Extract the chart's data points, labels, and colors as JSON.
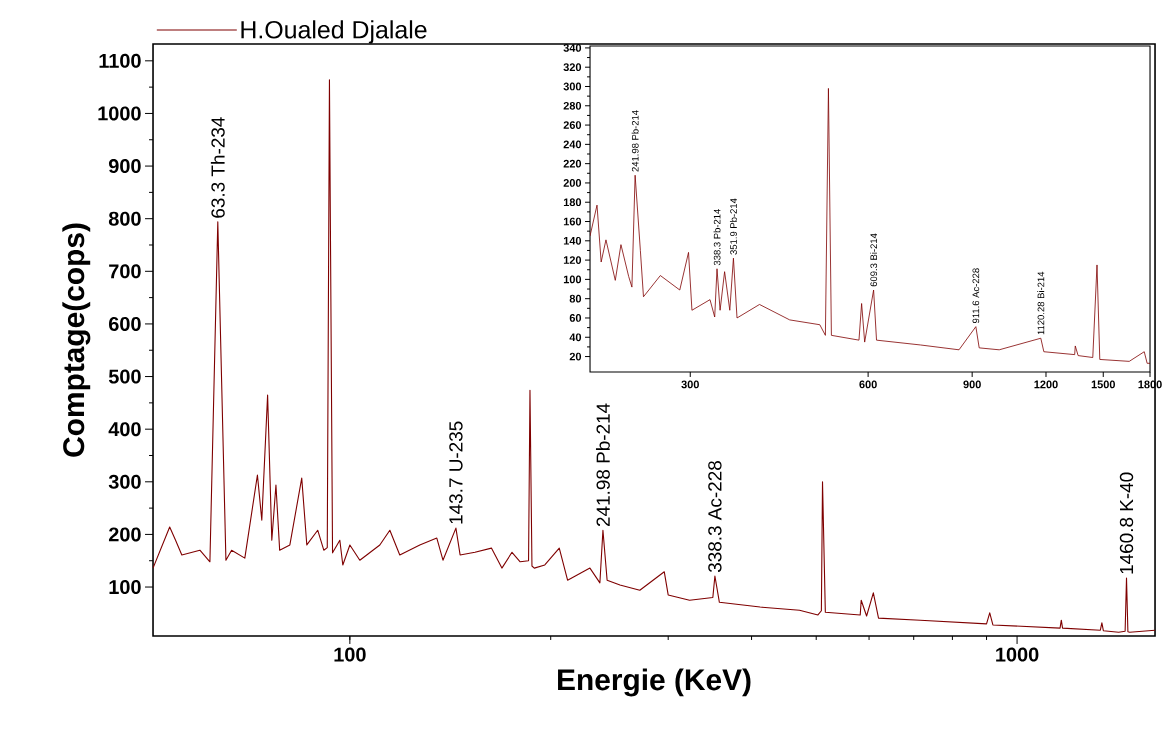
{
  "chart_data": [
    {
      "type": "line",
      "xlabel": "Energie (KeV)",
      "ylabel": "Comptage(cops)",
      "log": "x",
      "legend": "top left",
      "xlim": [
        50.7,
        1610
      ],
      "xticks": [
        100,
        1000
      ],
      "ylim": [
        7,
        1132
      ],
      "yticks": [
        100,
        200,
        300,
        400,
        500,
        600,
        700,
        800,
        900,
        1000,
        1100
      ],
      "series": [
        {
          "name": "H.Oualed Djalale",
          "color": "#7f0000",
          "x": [
            50.7,
            53.7,
            54.8,
            56,
            59.6,
            61.7,
            63.4,
            65.2,
            66.5,
            69.6,
            72.7,
            73.8,
            75.3,
            76.4,
            77.5,
            78.5,
            81.3,
            84.7,
            86.2,
            89.5,
            91.4,
            92.5,
            93.2,
            94.2,
            96.6,
            97.6,
            100,
            103.5,
            110.9,
            114.8,
            118.8,
            127.3,
            135,
            137.9,
            144.2,
            146.3,
            154,
            163,
            169,
            175,
            180,
            185.3,
            186.2,
            187.5,
            189,
            196,
            206,
            212,
            229,
            237,
            239.5,
            243,
            254,
            272,
            296,
            300,
            323,
            350,
            352.5,
            358,
            412,
            472,
            503,
            509,
            511,
            516,
            582,
            584,
            595,
            609,
            620,
            716,
            900,
            910,
            920,
            1160,
            1165,
            1170,
            1333,
            1340,
            1347,
            1420,
            1452,
            1459,
            1466,
            1475,
            1610
          ],
          "values": [
            136,
            214,
            189,
            161,
            170,
            148,
            794,
            151,
            170,
            155,
            313,
            227,
            465,
            189,
            294,
            170,
            180,
            307,
            180,
            208,
            170,
            175,
            1064,
            165,
            189,
            142,
            180,
            151,
            180,
            208,
            161,
            180,
            193,
            151,
            212,
            161,
            166,
            174,
            136,
            166,
            148,
            150,
            474,
            140,
            136,
            142,
            174,
            113,
            136,
            108,
            208,
            113,
            104,
            94,
            129,
            85,
            75,
            80,
            121,
            71,
            62,
            56,
            47,
            55,
            300,
            52,
            47,
            75,
            45,
            89,
            41,
            37,
            30,
            51,
            28,
            22,
            37,
            22,
            18,
            32,
            17,
            14,
            16,
            117,
            15,
            14,
            18
          ]
        }
      ],
      "annotations": [
        {
          "text": "63.3 Th-234",
          "x": 63.4,
          "y": 794
        },
        {
          "text": "143.7 U-235",
          "x": 144.2,
          "y": 212
        },
        {
          "text": "241.98 Pb-214",
          "x": 239.5,
          "y": 208
        },
        {
          "text": "338.3 Ac-228",
          "x": 352.5,
          "y": 121
        },
        {
          "text": "1460.8 K-40",
          "x": 1459,
          "y": 117
        }
      ]
    },
    {
      "type": "line",
      "log": "x",
      "xlim": [
        203,
        1800
      ],
      "xticks": [
        300,
        600,
        900,
        1200,
        1500,
        1800
      ],
      "ylim": [
        4,
        342
      ],
      "yticks": [
        20,
        40,
        60,
        80,
        100,
        120,
        140,
        160,
        180,
        200,
        220,
        240,
        260,
        280,
        300,
        320,
        340
      ],
      "series": [
        {
          "color": "#7f0000",
          "x": [
            203,
            208.6,
            212,
            216,
            224,
            229,
            236,
            239,
            242,
            247,
            250,
            267,
            288,
            298,
            302,
            324,
            330,
            333,
            337,
            343,
            350,
            355,
            360,
            393,
            442,
            497,
            508,
            514,
            520,
            579,
            585,
            592,
            613,
            620,
            736,
            855,
            913,
            925,
            1000,
            1176,
            1190,
            1342,
            1345,
            1360,
            1440,
            1464,
            1480,
            1660,
            1760,
            1780,
            1800
          ],
          "values": [
            145,
            177,
            118,
            141,
            99,
            136,
            103,
            92,
            208,
            130,
            82,
            104,
            89,
            128,
            68,
            79,
            61,
            111,
            68,
            108,
            68,
            122,
            60,
            74,
            58,
            53,
            42,
            298,
            42,
            37,
            75,
            35,
            89,
            37,
            32,
            27,
            51,
            29,
            27,
            39,
            25,
            22,
            31,
            21,
            19,
            115,
            17,
            15,
            25,
            13,
            13
          ]
        }
      ],
      "annotations": [
        {
          "text": "241.98 Pb-214",
          "x": 242,
          "y": 208
        },
        {
          "text": "338.3 Pb-214",
          "x": 333,
          "y": 111
        },
        {
          "text": "351.9 Pb-214",
          "x": 355,
          "y": 122
        },
        {
          "text": "609.3 Bi-214",
          "x": 613,
          "y": 89
        },
        {
          "text": "911.6 Ac-228",
          "x": 913,
          "y": 51
        },
        {
          "text": "1120.28 Bi-214",
          "x": 1176,
          "y": 39
        }
      ]
    }
  ]
}
